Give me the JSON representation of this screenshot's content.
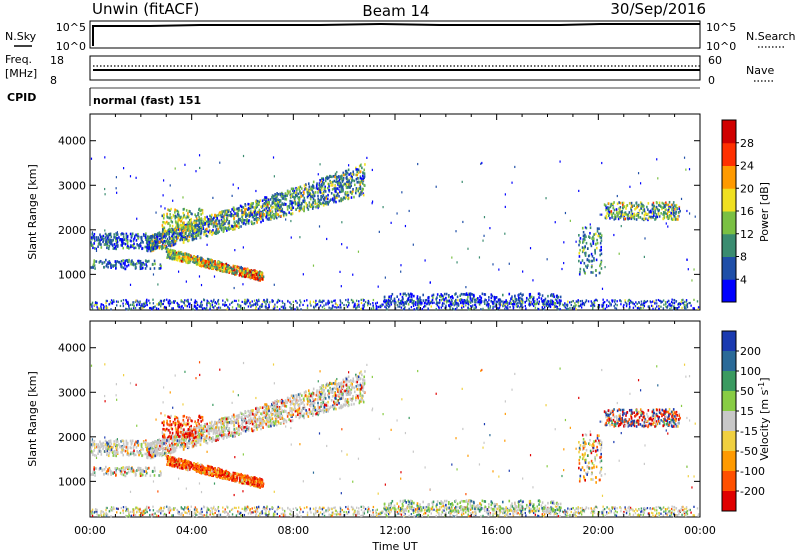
{
  "header": {
    "left": "Unwin (fitACF)",
    "center": "Beam 14",
    "right": "30/Sep/2016"
  },
  "top_panels": {
    "nsky_label": "N.Sky",
    "nsky_ticks": [
      "10^5",
      "10^0"
    ],
    "nsearch_label": "N.Search",
    "nsearch_ticks": [
      "10^5",
      "10^0"
    ],
    "freq_label_line1": "Freq.",
    "freq_label_line2": "[MHz]",
    "freq_ticks": [
      "18",
      "8"
    ],
    "nave_label": "Nave",
    "nave_ticks": [
      "60",
      "0"
    ],
    "cpid_label": "CPID",
    "cpid_text": "normal (fast) 151"
  },
  "chart_data": [
    {
      "type": "heatmap",
      "name": "power",
      "ylabel": "Slant Range [km]",
      "ylim": [
        200,
        4600
      ],
      "yticks": [
        "1000",
        "2000",
        "3000",
        "4000"
      ],
      "colorbar_label": "Power [dB]",
      "colorbar_ticks": [
        "4",
        "8",
        "12",
        "16",
        "20",
        "24",
        "28"
      ],
      "colorbar_range": [
        0,
        32
      ],
      "colors": [
        "#0000ff",
        "#1f4fa8",
        "#3a8c70",
        "#7ac043",
        "#f0e020",
        "#ff9a00",
        "#ff3000",
        "#d00000"
      ]
    },
    {
      "type": "heatmap",
      "name": "velocity",
      "ylabel": "Slant Range [km]",
      "xlabel": "Time UT",
      "ylim": [
        200,
        4600
      ],
      "yticks": [
        "1000",
        "2000",
        "3000",
        "4000"
      ],
      "xticks": [
        "00:00",
        "04:00",
        "08:00",
        "12:00",
        "16:00",
        "20:00",
        "00:00"
      ],
      "colorbar_label_main": "Velocity [m s",
      "colorbar_label_sup": "-1",
      "colorbar_label_end": "]",
      "colorbar_ticks": [
        "200",
        "100",
        "50",
        "15",
        "-15",
        "-50",
        "-100",
        "-200"
      ],
      "colors": [
        "#1a3ab0",
        "#2a6a98",
        "#3a9a60",
        "#88cc44",
        "#c8c8c8",
        "#f0d040",
        "#ff9a00",
        "#ff5000",
        "#e00000"
      ]
    }
  ]
}
